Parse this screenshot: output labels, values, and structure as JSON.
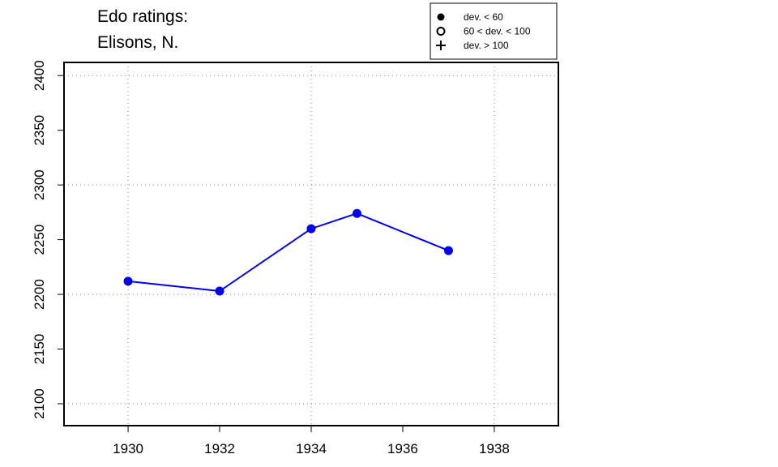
{
  "chart_data": {
    "type": "line",
    "title_lines": [
      "Edo ratings:",
      "Elisons, N."
    ],
    "xlabel": "",
    "ylabel": "",
    "x_ticks": [
      1930,
      1932,
      1934,
      1936,
      1938
    ],
    "y_ticks": [
      2100,
      2150,
      2200,
      2250,
      2300,
      2350,
      2400
    ],
    "xlim": [
      1928.6,
      1939.4
    ],
    "ylim": [
      2080,
      2412
    ],
    "grid": "dotted at every other tick",
    "series": [
      {
        "color": "#0000ee",
        "marker": "filled-circle",
        "x": [
          1930,
          1932,
          1934,
          1935,
          1937
        ],
        "y": [
          2212,
          2203,
          2260,
          2274,
          2240
        ]
      }
    ],
    "legend": {
      "position": "top-right",
      "entries": [
        {
          "symbol": "filled-circle",
          "label": "dev. < 60"
        },
        {
          "symbol": "open-circle",
          "label": "60 < dev. < 100"
        },
        {
          "symbol": "plus",
          "label": "dev. > 100"
        }
      ]
    }
  }
}
